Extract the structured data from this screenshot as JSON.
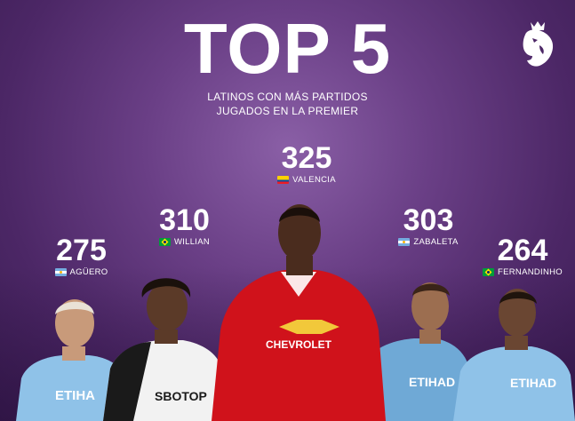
{
  "header": {
    "title": "TOP 5",
    "subtitle_line1": "LATINOS CON MÁS PARTIDOS",
    "subtitle_line2": "JUGADOS EN LA PREMIER"
  },
  "logo": {
    "icon": "premier-league-lion-icon"
  },
  "players": [
    {
      "rank_value": "325",
      "name": "VALENCIA",
      "flag": "ecuador-flag-icon",
      "kit_sponsor": "CHEVROLET"
    },
    {
      "rank_value": "310",
      "name": "WILLIAN",
      "flag": "brazil-flag-icon",
      "kit_sponsor": "SBOTOP"
    },
    {
      "rank_value": "303",
      "name": "ZABALETA",
      "flag": "argentina-flag-icon",
      "kit_sponsor": "ETIHAD"
    },
    {
      "rank_value": "275",
      "name": "AGÜERO",
      "flag": "argentina-flag-icon",
      "kit_sponsor": "ETIHA"
    },
    {
      "rank_value": "264",
      "name": "FERNANDINHO",
      "flag": "brazil-flag-icon",
      "kit_sponsor": "ETIHAD"
    }
  ],
  "colors": {
    "background": "#5a3278",
    "united_red": "#d0121b",
    "city_blue": "#8fc2e8",
    "fulham_white": "#f2f2f2"
  }
}
